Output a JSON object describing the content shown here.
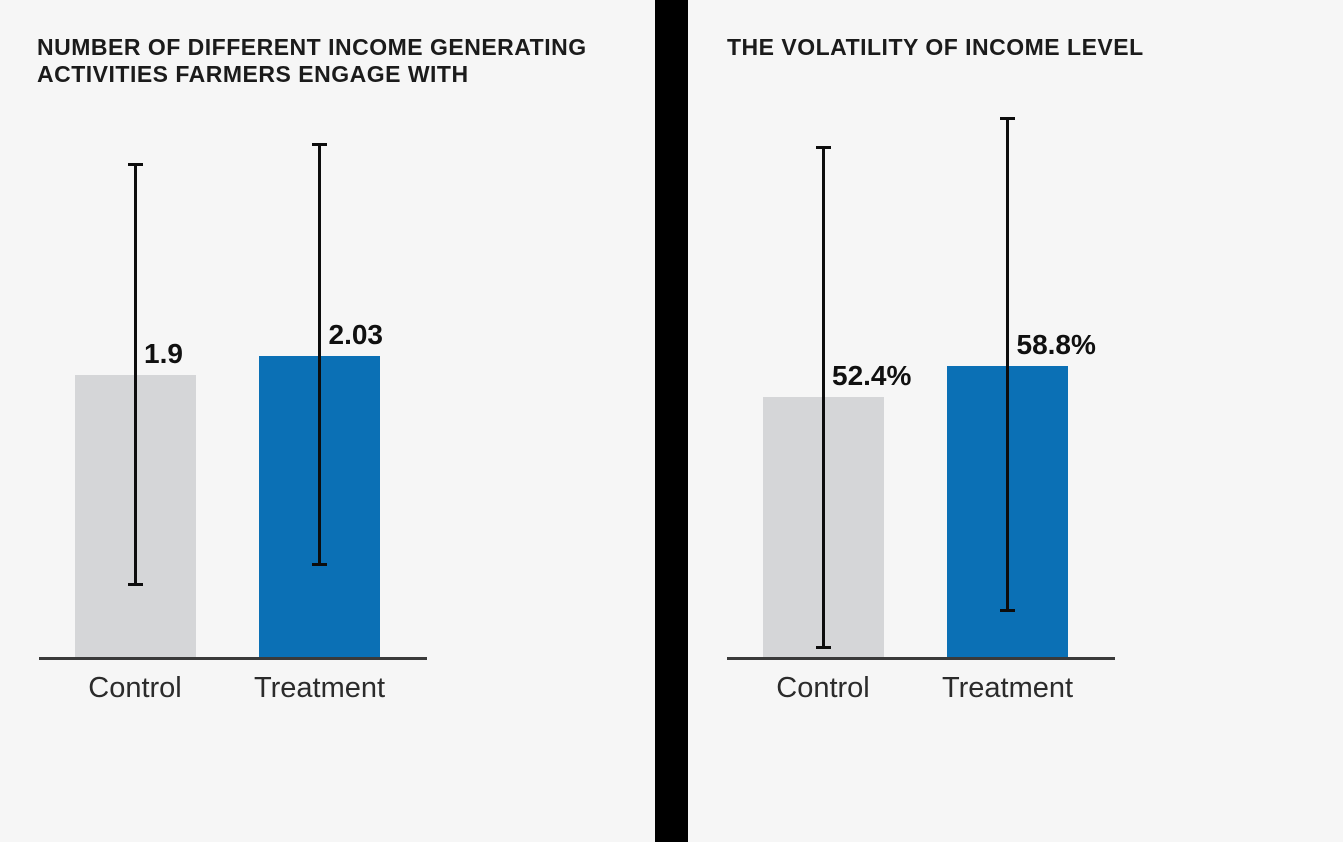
{
  "page": {
    "background_color": "#f6f6f6",
    "divider_color": "#000000",
    "axis_color": "#3a3a3a",
    "error_bar_color": "#0d0d0d"
  },
  "chart_data": [
    {
      "type": "bar",
      "title": "NUMBER OF DIFFERENT INCOME GENERATING ACTIVITIES FARMERS ENGAGE WITH",
      "categories": [
        "Control",
        "Treatment"
      ],
      "values": [
        1.9,
        2.03
      ],
      "value_labels": [
        "1.9",
        "2.03"
      ],
      "series_colors": [
        "#d5d6d8",
        "#0b70b5"
      ],
      "error_bars": {
        "low": [
          0.5,
          0.63
        ],
        "high": [
          3.31,
          3.44
        ]
      },
      "ylim": [
        0,
        3.74
      ],
      "xlabel": "",
      "ylabel": "",
      "grid": false,
      "legend": false
    },
    {
      "type": "bar",
      "title": "THE VOLATILITY OF INCOME LEVEL",
      "categories": [
        "Control",
        "Treatment"
      ],
      "values": [
        52.4,
        58.8
      ],
      "value_labels": [
        "52.4%",
        "58.8%"
      ],
      "series_colors": [
        "#d5d6d8",
        "#0b70b5"
      ],
      "error_bars": {
        "low": [
          2.4,
          9.8
        ],
        "high": [
          102.4,
          108.2
        ]
      },
      "ylim": [
        0,
        112
      ],
      "xlabel": "",
      "ylabel": "",
      "grid": false,
      "legend": false
    }
  ]
}
